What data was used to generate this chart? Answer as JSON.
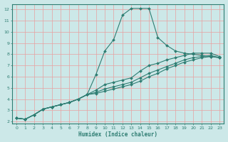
{
  "xlabel": "Humidex (Indice chaleur)",
  "bg_color": "#cce8e8",
  "grid_color": "#e8a0a0",
  "line_color": "#2e7d72",
  "spine_color": "#2e7d72",
  "xlim": [
    -0.5,
    23.5
  ],
  "ylim": [
    1.8,
    12.5
  ],
  "xticks": [
    0,
    1,
    2,
    3,
    4,
    5,
    6,
    7,
    8,
    9,
    10,
    11,
    12,
    13,
    14,
    15,
    16,
    17,
    18,
    19,
    20,
    21,
    22,
    23
  ],
  "yticks": [
    2,
    3,
    4,
    5,
    6,
    7,
    8,
    9,
    10,
    11,
    12
  ],
  "line1_x": [
    0,
    1,
    2,
    3,
    4,
    5,
    6,
    7,
    8,
    9,
    10,
    11,
    12,
    13,
    14,
    15,
    16,
    17,
    18,
    19,
    20,
    21,
    22,
    23
  ],
  "line1_y": [
    2.3,
    2.2,
    2.6,
    3.1,
    3.3,
    3.5,
    3.7,
    4.0,
    4.4,
    6.2,
    8.3,
    9.3,
    11.5,
    12.1,
    12.1,
    12.1,
    9.5,
    8.8,
    8.3,
    8.1,
    8.0,
    7.9,
    7.8,
    7.7
  ],
  "line2_x": [
    0,
    1,
    2,
    3,
    4,
    5,
    6,
    7,
    8,
    9,
    10,
    11,
    12,
    13,
    14,
    15,
    16,
    17,
    18,
    19,
    20,
    21,
    22,
    23
  ],
  "line2_y": [
    2.3,
    2.2,
    2.6,
    3.1,
    3.3,
    3.5,
    3.7,
    4.0,
    4.4,
    4.8,
    5.3,
    5.5,
    5.7,
    5.9,
    6.5,
    7.0,
    7.2,
    7.5,
    7.7,
    7.9,
    8.1,
    8.1,
    8.1,
    7.8
  ],
  "line3_x": [
    0,
    1,
    2,
    3,
    4,
    5,
    6,
    7,
    8,
    9,
    10,
    11,
    12,
    13,
    14,
    15,
    16,
    17,
    18,
    19,
    20,
    21,
    22,
    23
  ],
  "line3_y": [
    2.3,
    2.2,
    2.6,
    3.1,
    3.3,
    3.5,
    3.7,
    4.0,
    4.4,
    4.6,
    4.9,
    5.1,
    5.3,
    5.5,
    5.9,
    6.3,
    6.6,
    6.9,
    7.2,
    7.5,
    7.7,
    7.8,
    7.9,
    7.7
  ],
  "line4_x": [
    0,
    1,
    2,
    3,
    4,
    5,
    6,
    7,
    8,
    9,
    10,
    11,
    12,
    13,
    14,
    15,
    16,
    17,
    18,
    19,
    20,
    21,
    22,
    23
  ],
  "line4_y": [
    2.3,
    2.2,
    2.6,
    3.1,
    3.3,
    3.5,
    3.7,
    4.0,
    4.4,
    4.5,
    4.7,
    4.9,
    5.1,
    5.3,
    5.6,
    6.0,
    6.3,
    6.7,
    7.0,
    7.3,
    7.5,
    7.7,
    7.8,
    7.7
  ],
  "tick_fontsize": 4.5,
  "xlabel_fontsize": 5.5,
  "marker_size": 2.0,
  "line_width": 0.8
}
